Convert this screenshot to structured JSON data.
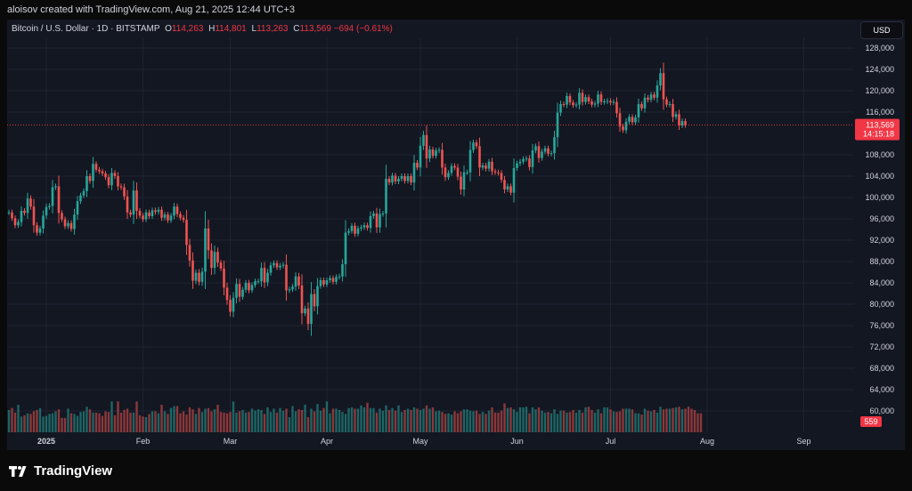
{
  "header": {
    "credit": "aloisov created with TradingView.com, Aug 21, 2025 12:44 UTC+3"
  },
  "legend": {
    "symbol": "Bitcoin / U.S. Dollar · 1D · BITSTAMP",
    "o_label": "O",
    "o_value": "114,263",
    "h_label": "H",
    "h_value": "114,801",
    "l_label": "L",
    "l_value": "113,263",
    "c_label": "C",
    "c_value": "113,569",
    "change": "−694 (−0.61%)"
  },
  "currency_button": "USD",
  "footer": {
    "brand": "TradingView"
  },
  "colors": {
    "up": "#26a69a",
    "down": "#ef5350",
    "volume_up": "#26a69a",
    "volume_down": "#ef5350",
    "price_tag": "#f23645"
  },
  "chart_data": {
    "type": "candlestick",
    "symbol": "BTCUSD",
    "exchange": "BITSTAMP",
    "interval": "1D",
    "y_axis": {
      "ticks": [
        "128,000",
        "124,000",
        "120,000",
        "116,000",
        "108,000",
        "104,000",
        "100,000",
        "96,000",
        "92,000",
        "88,000",
        "84,000",
        "80,000",
        "76,000",
        "72,000",
        "68,000",
        "64,000",
        "60,000"
      ],
      "ylim": [
        56000,
        130000
      ]
    },
    "x_axis": {
      "labels": [
        "2025",
        "Feb",
        "Mar",
        "Apr",
        "May",
        "Jun",
        "Jul",
        "Aug",
        "Sep"
      ]
    },
    "last_price": {
      "value": "113,569",
      "countdown": "14:15:18"
    },
    "volume_label": "559",
    "grid": true,
    "start_date": "2024-12-20",
    "closes": [
      97200,
      96100,
      94800,
      95400,
      97500,
      97100,
      99800,
      98300,
      94800,
      93400,
      94200,
      96600,
      98200,
      98400,
      101900,
      102100,
      97100,
      95900,
      94600,
      95200,
      94100,
      96800,
      99300,
      100400,
      101200,
      104000,
      103100,
      106300,
      105200,
      104900,
      104500,
      103800,
      102300,
      104600,
      104000,
      102100,
      101900,
      100200,
      97200,
      96800,
      101300,
      97500,
      96600,
      95900,
      97200,
      96500,
      97600,
      97300,
      97700,
      96200,
      96800,
      95700,
      96600,
      98300,
      96900,
      96200,
      95800,
      91100,
      88200,
      84400,
      85900,
      84200,
      86100,
      94200,
      90100,
      86800,
      89800,
      87800,
      86700,
      83100,
      80800,
      78600,
      81200,
      83800,
      81400,
      82700,
      84000,
      82600,
      83600,
      84300,
      84300,
      86800,
      84100,
      85900,
      87300,
      87700,
      86900,
      87200,
      87400,
      82600,
      82800,
      83300,
      85200,
      83500,
      78300,
      79200,
      76300,
      81900,
      79600,
      83400,
      84500,
      83700,
      84500,
      84900,
      84200,
      85100,
      85200,
      87500,
      93400,
      93700,
      94700,
      93200,
      94200,
      94400,
      94800,
      94300,
      96500,
      97000,
      94400,
      96900,
      97000,
      103500,
      102800,
      104100,
      103000,
      103500,
      104000,
      103100,
      104000,
      102800,
      106500,
      105600,
      109700,
      111700,
      107300,
      109000,
      107800,
      108800,
      108900,
      105600,
      103800,
      104600,
      105900,
      105600,
      103900,
      101500,
      104700,
      104700,
      108900,
      110300,
      109600,
      105600,
      106000,
      105400,
      106700,
      104900,
      104700,
      104600,
      103300,
      101500,
      102100,
      100900,
      105500,
      106400,
      106700,
      107200,
      107300,
      105700,
      108800,
      109600,
      107400,
      108600,
      109200,
      108200,
      108300,
      111300,
      115900,
      117500,
      117400,
      119000,
      117800,
      117300,
      117400,
      119600,
      117900,
      118800,
      118000,
      117400,
      117600,
      119300,
      117900,
      118000,
      118100,
      117800,
      117900,
      115800,
      113300,
      112600,
      114200,
      115100,
      114100,
      115000,
      117500,
      116700,
      118700,
      118300,
      119300,
      118700,
      121000,
      123300,
      118400,
      117400,
      117500,
      115100,
      115600,
      113500,
      114300,
      113569
    ],
    "volumes": [
      3400,
      3700,
      3000,
      4200,
      2400,
      2600,
      2900,
      2800,
      3200,
      3400,
      3700,
      2400,
      2500,
      2800,
      2900,
      3200,
      3500,
      2200,
      2200,
      3600,
      2900,
      2800,
      2500,
      3100,
      3200,
      3900,
      3500,
      3000,
      3000,
      2900,
      2500,
      3200,
      3100,
      4700,
      2600,
      4700,
      3000,
      3400,
      3600,
      3000,
      3000,
      4700,
      2600,
      2400,
      2300,
      2800,
      3200,
      3200,
      2900,
      4200,
      3200,
      2800,
      3700,
      4000,
      4000,
      2900,
      3200,
      2700,
      3800,
      3500,
      2800,
      3700,
      3100,
      3600,
      3700,
      3200,
      3500,
      4200,
      3100,
      3000,
      2900,
      3100,
      4700,
      3000,
      3200,
      3400,
      3000,
      3100,
      3600,
      3300,
      3500,
      3400,
      2800,
      3800,
      3100,
      3600,
      3000,
      3700,
      3300,
      3600,
      2300,
      4000,
      3200,
      3500,
      3400,
      4200,
      2300,
      3600,
      3200,
      4300,
      3300,
      3700,
      4700,
      2900,
      3600,
      3600,
      3400,
      3100,
      2800,
      3700,
      3800,
      3600,
      3600,
      4100,
      3800,
      4500,
      3700,
      3700,
      3000,
      3600,
      3300,
      4100,
      3400,
      3700,
      3300,
      4100,
      3100,
      3400,
      3600,
      3400,
      3800,
      3600,
      3400,
      3600,
      4100,
      3600,
      3800,
      3200,
      3300,
      3100,
      2800,
      2900,
      2700,
      3200,
      2900,
      3200,
      3500,
      3500,
      3300,
      3200,
      3300,
      2800,
      3100,
      2800,
      3300,
      3800,
      3000,
      3000,
      3300,
      4400,
      3700,
      3800,
      3500,
      3100,
      3800,
      3800,
      3900,
      2900,
      3800,
      3500,
      3800,
      3300,
      3000,
      3100,
      2900,
      3500,
      2800,
      3300,
      3300,
      3000,
      3100,
      3400,
      3000,
      3400,
      3000,
      3800,
      3900,
      3400,
      3000,
      3500,
      2900,
      3800,
      3800,
      3500,
      3200,
      3100,
      3200,
      3600,
      3600,
      3600,
      3500,
      2900,
      2900,
      2700,
      3600,
      3300,
      3200,
      3400,
      3000,
      3900,
      3500,
      3600,
      3600,
      3700,
      3800,
      3900,
      3500,
      3600,
      3900,
      3600,
      3400,
      2900,
      2900
    ]
  }
}
